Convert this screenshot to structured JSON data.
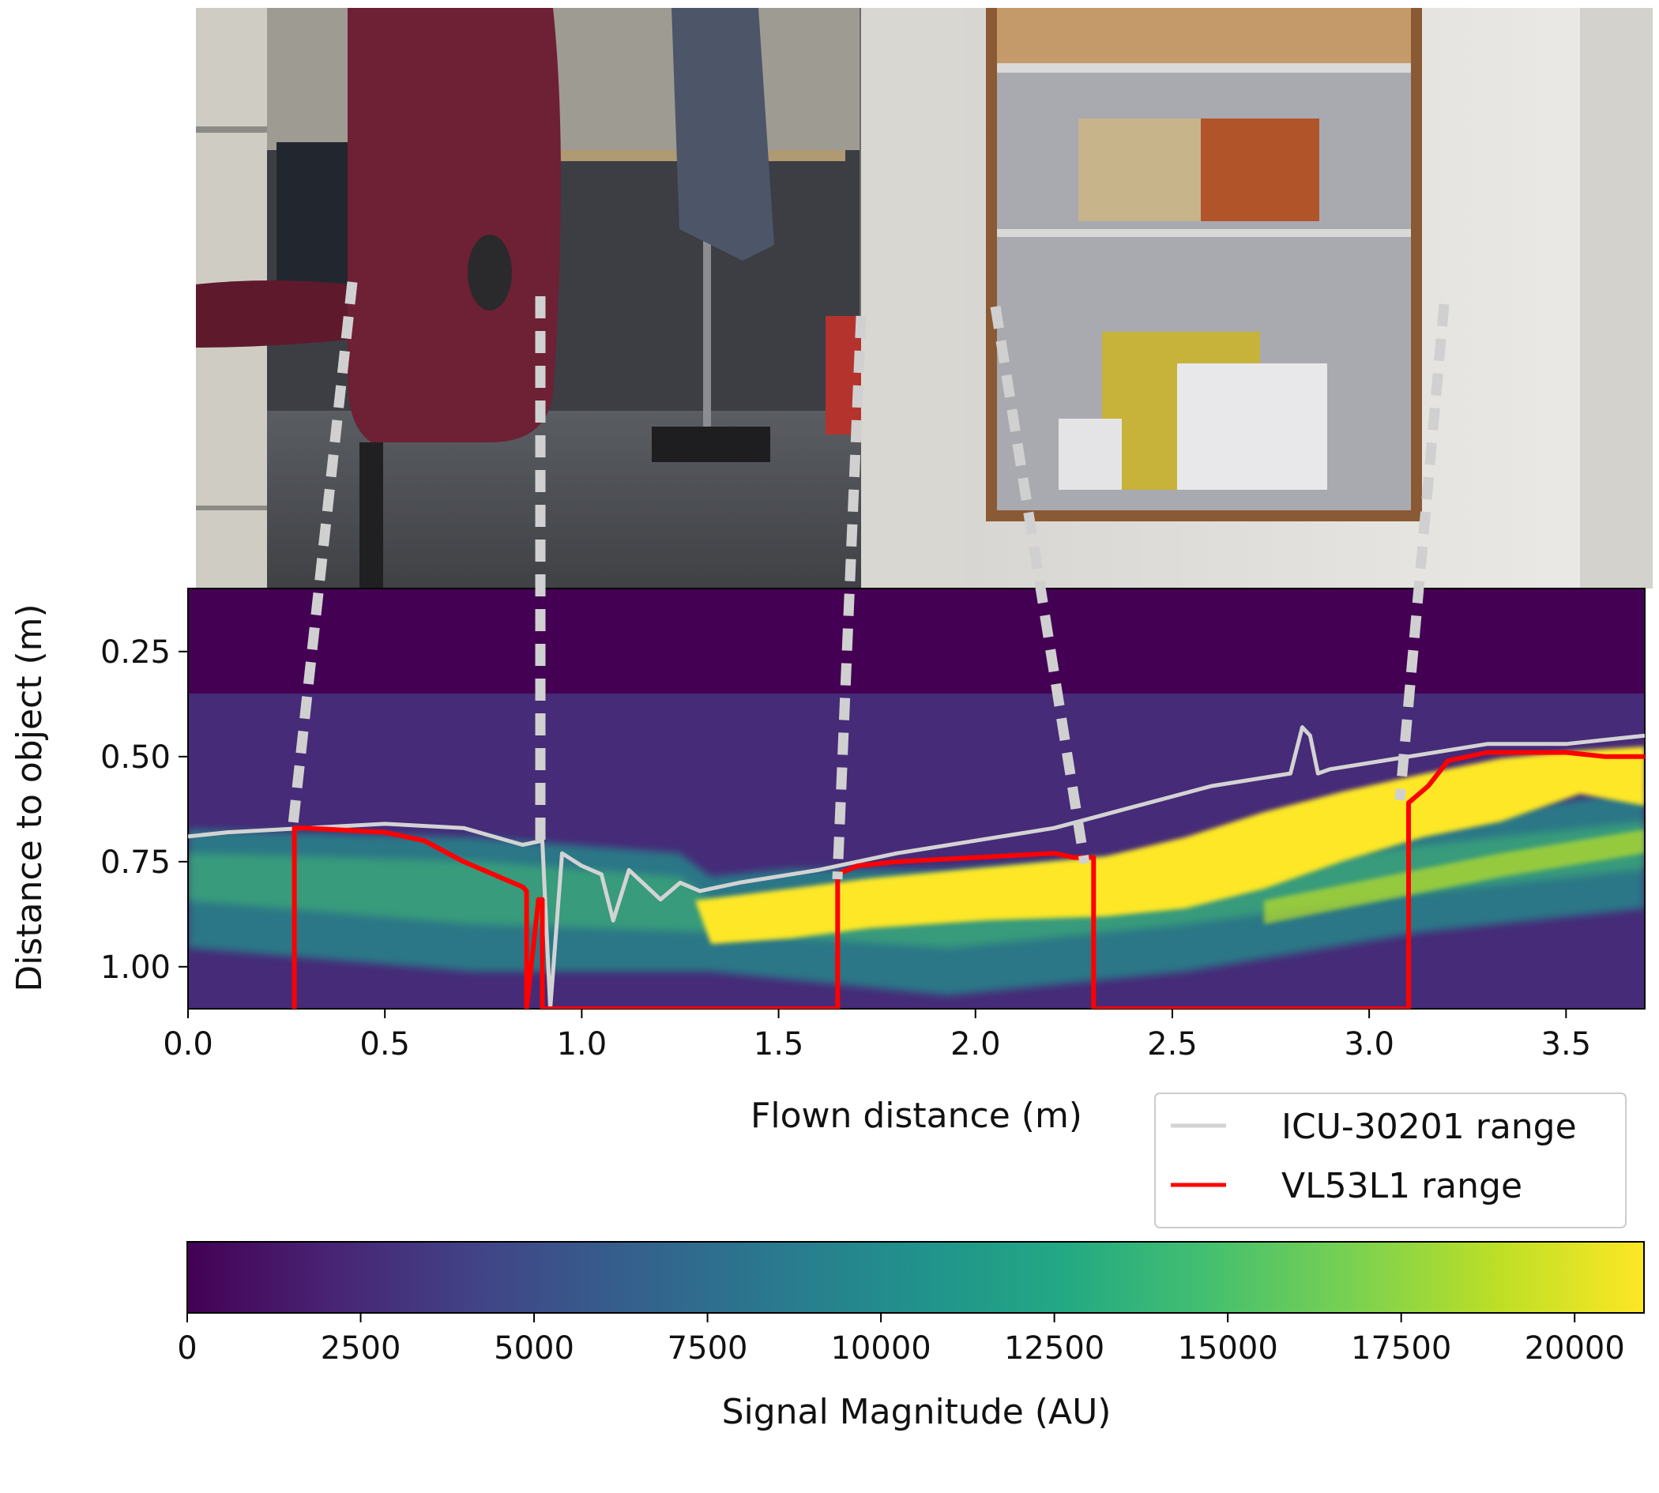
{
  "chart_data": [
    {
      "type": "heatmap",
      "xlabel": "Flown distance (m)",
      "ylabel": "Distance to object (m)",
      "xlim": [
        0.0,
        3.7
      ],
      "ylim": [
        1.1,
        0.1
      ],
      "y_inverted": true,
      "xticks": [
        0.0,
        0.5,
        1.0,
        1.5,
        2.0,
        2.5,
        3.0,
        3.5
      ],
      "xtick_labels": [
        "0.0",
        "0.5",
        "1.0",
        "1.5",
        "2.0",
        "2.5",
        "3.0",
        "3.5"
      ],
      "yticks": [
        0.25,
        0.5,
        0.75,
        1.0
      ],
      "ytick_labels": [
        "0.25",
        "0.50",
        "0.75",
        "1.00"
      ],
      "legend": "lower-right outside",
      "series": [
        {
          "name": "ICU-30201 range",
          "color": "#d3d3d3",
          "x": [
            0.0,
            0.1,
            0.3,
            0.5,
            0.7,
            0.85,
            0.9,
            0.92,
            0.95,
            1.0,
            1.05,
            1.08,
            1.12,
            1.2,
            1.25,
            1.3,
            1.4,
            1.6,
            1.8,
            2.0,
            2.2,
            2.4,
            2.6,
            2.8,
            2.83,
            2.85,
            2.87,
            2.9,
            3.1,
            3.3,
            3.5,
            3.7
          ],
          "y": [
            0.69,
            0.68,
            0.67,
            0.66,
            0.67,
            0.71,
            0.7,
            1.1,
            0.73,
            0.76,
            0.78,
            0.89,
            0.77,
            0.84,
            0.8,
            0.82,
            0.8,
            0.77,
            0.73,
            0.7,
            0.67,
            0.62,
            0.57,
            0.54,
            0.43,
            0.45,
            0.54,
            0.53,
            0.5,
            0.47,
            0.47,
            0.45
          ]
        },
        {
          "name": "VL53L1 range",
          "color": "#ff0000",
          "x": [
            0.27,
            0.27,
            0.3,
            0.5,
            0.6,
            0.7,
            0.8,
            0.85,
            0.86,
            0.86,
            0.89,
            0.9,
            0.9,
            1.65,
            1.65,
            1.7,
            1.8,
            2.0,
            2.2,
            2.25,
            2.3,
            2.3,
            3.1,
            3.1,
            3.15,
            3.2,
            3.3,
            3.4,
            3.5,
            3.6,
            3.7
          ],
          "y": [
            1.1,
            0.67,
            0.67,
            0.68,
            0.7,
            0.75,
            0.79,
            0.81,
            0.82,
            1.1,
            0.84,
            0.84,
            1.1,
            1.1,
            0.78,
            0.76,
            0.75,
            0.74,
            0.73,
            0.74,
            0.74,
            1.1,
            1.1,
            0.61,
            0.57,
            0.51,
            0.49,
            0.49,
            0.49,
            0.5,
            0.5
          ]
        }
      ]
    },
    {
      "type": "colorbar",
      "label": "Signal Magnitude (AU)",
      "range": [
        0,
        21000
      ],
      "ticks": [
        0,
        2500,
        5000,
        7500,
        10000,
        12500,
        15000,
        17500,
        20000
      ],
      "tick_labels": [
        "0",
        "2500",
        "5000",
        "7500",
        "10000",
        "12500",
        "15000",
        "17500",
        "20000"
      ],
      "colormap": "viridis"
    }
  ],
  "connectors": {
    "color": "#d0d0d0",
    "x_in_data": [
      0.27,
      0.9,
      1.65,
      2.3,
      3.1
    ]
  },
  "photo": {
    "description_icon": "photograph-of-office-scene"
  }
}
